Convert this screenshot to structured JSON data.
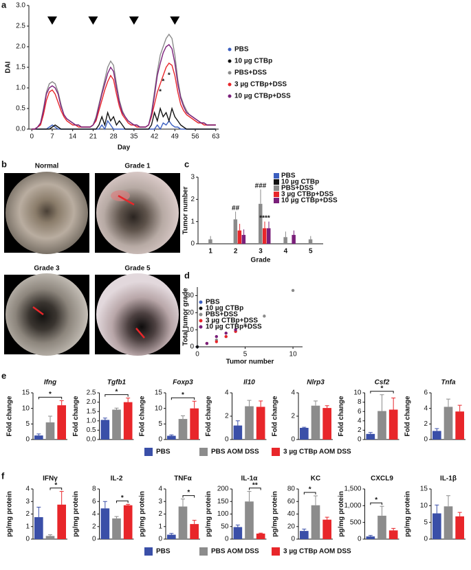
{
  "panel_labels": [
    "a",
    "b",
    "c",
    "d",
    "e",
    "f"
  ],
  "endoscopy": {
    "labels": [
      "Normal",
      "Grade 1",
      "Grade 3",
      "Grade 5"
    ]
  },
  "chart_data": [
    {
      "type": "line",
      "xlabel": "Day",
      "ylabel": "DAI",
      "x": [
        0,
        1,
        2,
        3,
        4,
        5,
        6,
        7,
        8,
        9,
        10,
        11,
        12,
        13,
        14,
        15,
        16,
        17,
        18,
        19,
        20,
        21,
        22,
        23,
        24,
        25,
        26,
        27,
        28,
        29,
        30,
        31,
        32,
        33,
        34,
        35,
        36,
        37,
        38,
        39,
        40,
        41,
        42,
        43,
        44,
        45,
        46,
        47,
        48,
        49,
        50,
        51,
        52,
        53,
        54,
        55,
        56,
        57,
        58,
        59,
        60,
        61,
        62,
        63
      ],
      "xlim": [
        -1,
        64
      ],
      "xticks": [
        0,
        7,
        14,
        21,
        28,
        35,
        42,
        49,
        56,
        63
      ],
      "ylim": [
        0,
        3
      ],
      "yticks": [
        {
          "value": 0,
          "label": "0.0"
        },
        0.5,
        {
          "value": 1,
          "label": "1.0"
        },
        1.5,
        {
          "value": 2,
          "label": "2.0"
        },
        2.5,
        {
          "value": 3,
          "label": "3.0"
        }
      ],
      "triangles": [
        7,
        21,
        35,
        49
      ],
      "annotations": [
        {
          "text": "*",
          "x": 44,
          "y": 0.9
        },
        {
          "text": "*",
          "x": 45,
          "y": 1.15
        },
        {
          "text": "*",
          "x": 47,
          "y": 1.3
        }
      ],
      "series": [
        {
          "name": "PBS",
          "color": "#3b5fc0",
          "values": [
            0,
            0,
            0,
            0,
            0,
            0,
            0.05,
            0.1,
            0.05,
            0,
            0,
            0,
            0,
            0,
            0,
            0,
            0,
            0,
            0,
            0,
            0,
            0,
            0,
            0,
            0.1,
            0,
            0.2,
            0.1,
            0,
            0,
            0,
            0,
            0,
            0,
            0,
            0,
            0,
            0,
            0,
            0,
            0,
            0,
            0,
            0.1,
            0,
            0.15,
            0.1,
            0.2,
            0.1,
            0.05,
            0.05,
            0,
            0,
            0,
            0,
            0,
            0,
            0,
            0,
            0,
            0,
            0,
            0,
            0
          ]
        },
        {
          "name": "10 µg CTBp",
          "color": "#111111",
          "values": [
            0,
            0,
            0,
            0,
            0,
            0,
            0,
            0.05,
            0.1,
            0.05,
            0,
            0,
            0,
            0,
            0,
            0,
            0,
            0,
            0,
            0,
            0,
            0,
            0,
            0.1,
            0.3,
            0.1,
            0.4,
            0.2,
            0.3,
            0.1,
            0.2,
            0.1,
            0,
            0,
            0,
            0,
            0,
            0,
            0,
            0,
            0,
            0.1,
            0.4,
            0.2,
            0.5,
            0.3,
            0.4,
            0.2,
            0.5,
            0.3,
            0.2,
            0.1,
            0.05,
            0,
            0,
            0,
            0,
            0,
            0,
            0,
            0,
            0,
            0,
            0
          ]
        },
        {
          "name": "PBS+DSS",
          "color": "#8a8a8a",
          "values": [
            0,
            0,
            0.05,
            0.15,
            0.5,
            0.9,
            1.1,
            1.15,
            1.1,
            0.9,
            0.6,
            0.35,
            0.25,
            0.2,
            0.15,
            0.1,
            0.1,
            0.05,
            0.05,
            0.05,
            0.05,
            0.1,
            0.3,
            0.6,
            0.9,
            1.2,
            1.5,
            1.65,
            1.55,
            1.1,
            0.7,
            0.45,
            0.3,
            0.2,
            0.15,
            0.1,
            0.1,
            0.05,
            0.05,
            0.05,
            0.1,
            0.4,
            0.9,
            1.4,
            1.8,
            2.0,
            2.2,
            2.3,
            2.2,
            1.8,
            1.2,
            0.8,
            0.6,
            0.45,
            0.35,
            0.3,
            0.25,
            0.2,
            0.15,
            0.15,
            0.1,
            0.1,
            0.1,
            0.1
          ]
        },
        {
          "name": "3 µg CTBp+DSS",
          "color": "#e8262a",
          "values": [
            0,
            0,
            0.05,
            0.1,
            0.35,
            0.7,
            0.9,
            0.95,
            0.85,
            0.65,
            0.45,
            0.3,
            0.2,
            0.15,
            0.1,
            0.1,
            0.05,
            0.05,
            0.05,
            0.05,
            0.05,
            0.1,
            0.2,
            0.45,
            0.7,
            0.95,
            1.15,
            1.3,
            1.2,
            0.85,
            0.55,
            0.35,
            0.25,
            0.15,
            0.1,
            0.1,
            0.05,
            0.05,
            0.05,
            0.05,
            0.1,
            0.3,
            0.6,
            0.9,
            1.1,
            1.3,
            1.5,
            1.6,
            1.55,
            1.3,
            0.9,
            0.6,
            0.45,
            0.35,
            0.3,
            0.25,
            0.2,
            0.15,
            0.15,
            0.1,
            0.1,
            0.1,
            0.1,
            0.1
          ]
        },
        {
          "name": "10 µg CTBp+DSS",
          "color": "#7a1f7a",
          "values": [
            0,
            0,
            0.05,
            0.15,
            0.45,
            0.85,
            1.0,
            1.05,
            1.0,
            0.85,
            0.55,
            0.35,
            0.25,
            0.2,
            0.15,
            0.1,
            0.1,
            0.05,
            0.05,
            0.05,
            0.05,
            0.1,
            0.25,
            0.55,
            0.85,
            1.1,
            1.35,
            1.5,
            1.4,
            1.0,
            0.65,
            0.4,
            0.3,
            0.2,
            0.15,
            0.1,
            0.1,
            0.05,
            0.05,
            0.05,
            0.1,
            0.35,
            0.8,
            1.3,
            1.6,
            1.85,
            2.0,
            2.05,
            1.95,
            1.6,
            1.1,
            0.75,
            0.55,
            0.4,
            0.35,
            0.3,
            0.25,
            0.2,
            0.15,
            0.15,
            0.1,
            0.1,
            0.1,
            0.1
          ]
        }
      ]
    },
    {
      "type": "bar",
      "xlabel": "Grade",
      "ylabel": "Tumor number",
      "categories": [
        "1",
        "2",
        "3",
        "4",
        "5"
      ],
      "ylim": [
        0,
        3
      ],
      "yticks": [
        0,
        1,
        2,
        3
      ],
      "series": [
        {
          "name": "PBS",
          "color": "#3b5fc0",
          "values": [
            0,
            0,
            0,
            0,
            0
          ],
          "errors": [
            0,
            0,
            0,
            0,
            0
          ]
        },
        {
          "name": "10 µg CTBp",
          "color": "#111111",
          "values": [
            0,
            0,
            0,
            0,
            0
          ],
          "errors": [
            0,
            0,
            0,
            0,
            0
          ]
        },
        {
          "name": "PBS+DSS",
          "color": "#8a8a8a",
          "values": [
            0.2,
            1.1,
            1.8,
            0.3,
            0.2
          ],
          "errors": [
            0.15,
            0.35,
            0.65,
            0.25,
            0.15
          ]
        },
        {
          "name": "3 µg CTBp+DSS",
          "color": "#e8262a",
          "values": [
            0,
            0.6,
            0.7,
            0,
            0
          ],
          "errors": [
            0,
            0.3,
            0.3,
            0,
            0
          ]
        },
        {
          "name": "10 µg CTBp+DSS",
          "color": "#7a1f7a",
          "values": [
            0,
            0.4,
            0.7,
            0.4,
            0
          ],
          "errors": [
            0,
            0.25,
            0.3,
            0.2,
            0
          ]
        }
      ],
      "annotations": [
        {
          "text": "##",
          "category": 1,
          "series": 2
        },
        {
          "text": "###",
          "category": 2,
          "series": 2
        },
        {
          "text": "****",
          "category": 2,
          "series": 3
        }
      ]
    },
    {
      "type": "scatter",
      "xlabel": "Tumor number",
      "ylabel": "Total tumor grade",
      "xlim": [
        0,
        11
      ],
      "xticks": [
        0,
        5,
        10
      ],
      "ylim": [
        0,
        35
      ],
      "yticks": [
        0,
        10,
        20,
        30
      ],
      "series": [
        {
          "name": "PBS",
          "color": "#3b5fc0",
          "x": [
            0
          ],
          "values": [
            0
          ]
        },
        {
          "name": "10 µg CTBp",
          "color": "#111111",
          "x": [
            0
          ],
          "values": [
            0
          ]
        },
        {
          "name": "PBS+DSS",
          "color": "#8a8a8a",
          "x": [
            1,
            2,
            3,
            4,
            5,
            7,
            10
          ],
          "values": [
            2,
            4,
            6,
            9,
            13,
            18,
            33
          ]
        },
        {
          "name": "3 µg CTBp+DSS",
          "color": "#e8262a",
          "x": [
            1,
            2,
            3,
            4
          ],
          "values": [
            2,
            3,
            6,
            9
          ]
        },
        {
          "name": "10 µg CTBp+DSS",
          "color": "#7a1f7a",
          "x": [
            1,
            2,
            3,
            4
          ],
          "values": [
            2,
            6,
            8,
            10
          ]
        }
      ]
    },
    {
      "type": "bar-group",
      "ylabel": "Fold change",
      "italic_titles": true,
      "series_names": [
        "PBS",
        "PBS AOM DSS",
        "3 µg CTBp AOM DSS"
      ],
      "colors": [
        "#3a4fa8",
        "#8c8c8c",
        "#e8262a"
      ],
      "charts": [
        {
          "title": "Ifng",
          "values": [
            1.3,
            5.5,
            11
          ],
          "errors": [
            0.5,
            2,
            1.5
          ],
          "ylim": [
            0,
            15
          ],
          "yticks": [
            0,
            5,
            10,
            15
          ],
          "brackets": [
            {
              "from": 0,
              "to": 2,
              "label": "*"
            }
          ]
        },
        {
          "title": "Tgfb1",
          "values": [
            1.05,
            1.6,
            2.0
          ],
          "errors": [
            0.1,
            0.08,
            0.22
          ],
          "ylim": [
            0,
            2.5
          ],
          "yticks": [
            {
              "value": 0,
              "label": "0.0"
            },
            0.5,
            {
              "value": 1,
              "label": "1.0"
            },
            1.5,
            {
              "value": 2,
              "label": "2.0"
            },
            2.5
          ],
          "brackets": [
            {
              "from": 0,
              "to": 2,
              "label": "*"
            }
          ]
        },
        {
          "title": "Foxp3",
          "values": [
            1.2,
            6.6,
            10
          ],
          "errors": [
            0.3,
            1,
            2.3
          ],
          "ylim": [
            0,
            15
          ],
          "yticks": [
            0,
            5,
            10,
            15
          ],
          "brackets": [
            {
              "from": 0,
              "to": 2,
              "label": "*"
            }
          ]
        },
        {
          "title": "Il10",
          "values": [
            1.2,
            2.85,
            2.8
          ],
          "errors": [
            0.4,
            0.5,
            0.5
          ],
          "ylim": [
            0,
            4
          ],
          "yticks": [
            0,
            2,
            4
          ],
          "brackets": []
        },
        {
          "title": "Nlrp3",
          "values": [
            1.0,
            2.9,
            2.7
          ],
          "errors": [
            0.05,
            0.4,
            0.2
          ],
          "ylim": [
            0,
            4
          ],
          "yticks": [
            0,
            2,
            4
          ],
          "brackets": []
        },
        {
          "title": "Csf2",
          "values": [
            1.2,
            6.1,
            6.4
          ],
          "errors": [
            0.3,
            3.5,
            2.5
          ],
          "ylim": [
            0,
            10
          ],
          "yticks": [
            0,
            2,
            4,
            6,
            8,
            10
          ],
          "brackets": [
            {
              "from": 0,
              "to": 2,
              "label": "*"
            }
          ]
        },
        {
          "title": "Tnfa",
          "values": [
            1.1,
            4.2,
            3.6
          ],
          "errors": [
            0.3,
            1,
            0.8
          ],
          "ylim": [
            0,
            6
          ],
          "yticks": [
            0,
            2,
            4,
            6
          ],
          "brackets": []
        }
      ]
    },
    {
      "type": "bar-group",
      "ylabel": "pg/mg protein",
      "italic_titles": false,
      "series_names": [
        "PBS",
        "PBS AOM DSS",
        "3 µg CTBp AOM DSS"
      ],
      "colors": [
        "#3a4fa8",
        "#8c8c8c",
        "#e8262a"
      ],
      "charts": [
        {
          "title": "IFNγ",
          "values": [
            1.75,
            0.25,
            2.75
          ],
          "errors": [
            0.8,
            0.1,
            1.05
          ],
          "ylim": [
            0,
            4
          ],
          "yticks": [
            0,
            1,
            2,
            3,
            4
          ],
          "brackets": [
            {
              "from": 1,
              "to": 2,
              "label": "*"
            }
          ]
        },
        {
          "title": "IL-2",
          "values": [
            4.9,
            3.3,
            5.4
          ],
          "errors": [
            1.1,
            0.3,
            0.15
          ],
          "ylim": [
            0,
            8
          ],
          "yticks": [
            0,
            2,
            4,
            6,
            8
          ],
          "brackets": [
            {
              "from": 1,
              "to": 2,
              "label": "*"
            }
          ]
        },
        {
          "title": "TNFα",
          "values": [
            0.35,
            2.6,
            1.2
          ],
          "errors": [
            0.1,
            0.6,
            0.3
          ],
          "ylim": [
            0,
            4
          ],
          "yticks": [
            0,
            1,
            2,
            3,
            4
          ],
          "brackets": [
            {
              "from": 1,
              "to": 2,
              "label": "*"
            }
          ]
        },
        {
          "title": "IL-1α",
          "values": [
            48,
            150,
            22
          ],
          "errors": [
            8,
            40,
            2
          ],
          "ylim": [
            0,
            200
          ],
          "yticks": [
            0,
            50,
            100,
            150,
            200
          ],
          "brackets": [
            {
              "from": 1,
              "to": 2,
              "label": "**"
            }
          ]
        },
        {
          "title": "KC",
          "values": [
            13,
            54,
            31
          ],
          "errors": [
            3,
            15,
            4
          ],
          "ylim": [
            0,
            80
          ],
          "yticks": [
            0,
            20,
            40,
            60,
            80
          ],
          "brackets": [
            {
              "from": 0,
              "to": 1,
              "label": "*"
            }
          ]
        },
        {
          "title": "CXCL9",
          "values": [
            80,
            700,
            260
          ],
          "errors": [
            30,
            280,
            60
          ],
          "ylim": [
            0,
            1500
          ],
          "yticks": [
            0,
            500,
            {
              "value": 1000,
              "label": "1,000"
            },
            {
              "value": 1500,
              "label": "1,500"
            }
          ],
          "brackets": [
            {
              "from": 0,
              "to": 1,
              "label": "*"
            }
          ]
        },
        {
          "title": "IL-1β",
          "values": [
            7.7,
            9.8,
            6.8
          ],
          "errors": [
            2.5,
            3.2,
            1.2
          ],
          "ylim": [
            0,
            15
          ],
          "yticks": [
            0,
            5,
            10,
            15
          ],
          "brackets": []
        }
      ]
    }
  ]
}
